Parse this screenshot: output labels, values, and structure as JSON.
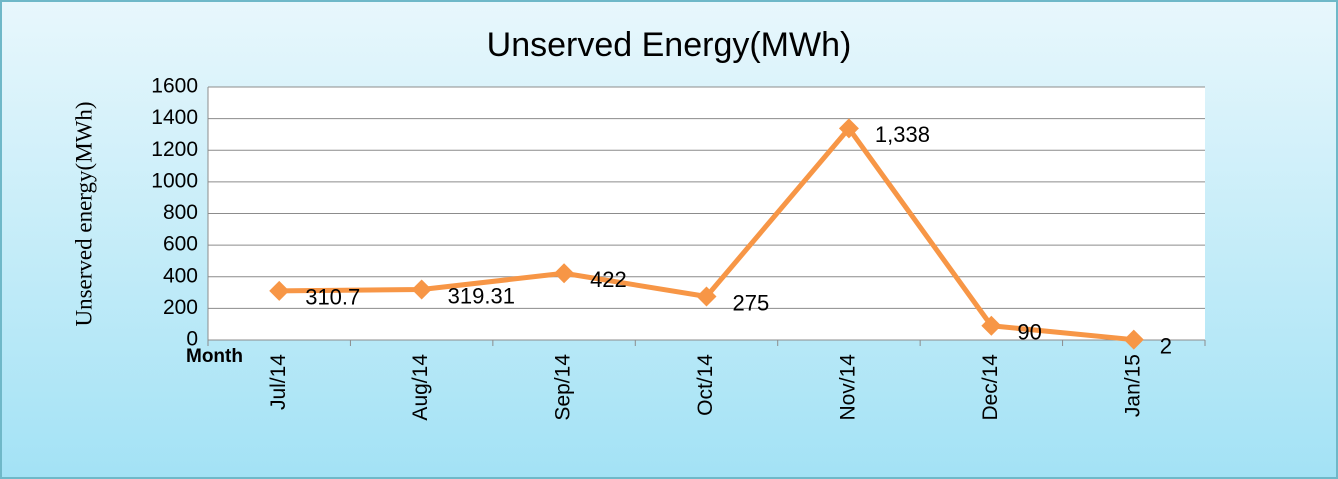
{
  "chart_data": {
    "type": "line",
    "title": "Unserved Energy(MWh)",
    "y_label": "Unserved energy(MWh)",
    "x_label": "Month",
    "categories": [
      "Jul/14",
      "Aug/14",
      "Sep/14",
      "Oct/14",
      "Nov/14",
      "Dec/14",
      "Jan/15"
    ],
    "values": [
      310.7,
      319.31,
      422,
      275,
      1338,
      90,
      2
    ],
    "value_labels": [
      "310.7",
      "319.31",
      "422",
      "275",
      "1,338",
      "90",
      "2"
    ],
    "color": "#f79646",
    "ylim": [
      0,
      1600
    ],
    "yticks": [
      0,
      200,
      400,
      600,
      800,
      1000,
      1200,
      1400,
      1600
    ],
    "grid": true
  }
}
